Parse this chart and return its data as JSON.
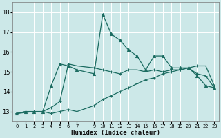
{
  "xlabel": "Humidex (Indice chaleur)",
  "bg_color": "#cce8e8",
  "grid_color": "#ffffff",
  "line_color": "#1a6b60",
  "xlim": [
    -0.5,
    23.5
  ],
  "ylim": [
    12.5,
    18.5
  ],
  "yticks": [
    13,
    14,
    15,
    16,
    17,
    18
  ],
  "xticks": [
    0,
    1,
    2,
    3,
    4,
    5,
    6,
    7,
    9,
    10,
    11,
    12,
    13,
    14,
    15,
    16,
    17,
    18,
    19,
    20,
    21,
    22,
    23
  ],
  "xticklabels": [
    "0",
    "1",
    "2",
    "3",
    "4",
    "5",
    "6",
    "7",
    "9",
    "10",
    "11",
    "12",
    "13",
    "14",
    "15",
    "16",
    "17",
    "18",
    "19",
    "20",
    "21",
    "22",
    "23"
  ],
  "line1_x": [
    0,
    2,
    3,
    4,
    5,
    6,
    7,
    9,
    10,
    11,
    12,
    13,
    14,
    15,
    16,
    17,
    18,
    19,
    20,
    21,
    22,
    23
  ],
  "line1_y": [
    12.9,
    13.0,
    13.0,
    12.9,
    13.0,
    13.1,
    13.0,
    13.3,
    13.6,
    13.8,
    14.0,
    14.2,
    14.4,
    14.6,
    14.7,
    14.9,
    15.0,
    15.1,
    15.2,
    15.3,
    15.3,
    14.3
  ],
  "line2_x": [
    0,
    1,
    2,
    3,
    4,
    5,
    6,
    7,
    9,
    10,
    11,
    12,
    13,
    14,
    15,
    16,
    17,
    18,
    19,
    20,
    21,
    22,
    23
  ],
  "line2_y": [
    12.9,
    13.0,
    13.0,
    13.0,
    13.2,
    13.5,
    15.4,
    15.3,
    15.2,
    15.1,
    15.0,
    14.9,
    15.1,
    15.1,
    15.0,
    15.1,
    15.0,
    15.1,
    15.1,
    15.2,
    14.9,
    14.8,
    14.2
  ],
  "line3_x": [
    0,
    1,
    2,
    3,
    4,
    5,
    6,
    7,
    9,
    10,
    11,
    12,
    13,
    14,
    15,
    16,
    17,
    18,
    19,
    20,
    21,
    22,
    23
  ],
  "line3_y": [
    12.9,
    13.0,
    13.0,
    13.0,
    14.3,
    15.4,
    15.3,
    15.1,
    14.9,
    17.9,
    16.9,
    16.6,
    16.1,
    15.8,
    15.1,
    15.8,
    15.8,
    15.2,
    15.2,
    15.2,
    14.8,
    14.3,
    14.2
  ]
}
